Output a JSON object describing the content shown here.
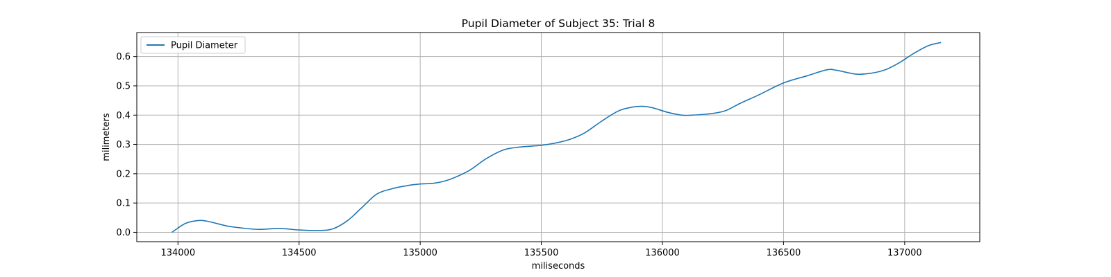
{
  "chart_data": {
    "type": "line",
    "title": "Pupil Diameter of Subject 35: Trial 8",
    "xlabel": "miliseconds",
    "ylabel": "milimeters",
    "xlim": [
      133830,
      137310
    ],
    "ylim": [
      -0.032,
      0.682
    ],
    "xticks": [
      134000,
      134500,
      135000,
      135500,
      136000,
      136500,
      137000
    ],
    "yticks": [
      0.0,
      0.1,
      0.2,
      0.3,
      0.4,
      0.5,
      0.6
    ],
    "xtick_labels": [
      "134000",
      "134500",
      "135000",
      "135500",
      "136000",
      "136500",
      "137000"
    ],
    "ytick_labels": [
      "0.0",
      "0.1",
      "0.2",
      "0.3",
      "0.4",
      "0.5",
      "0.6"
    ],
    "grid": true,
    "legend": {
      "position": "top-left"
    },
    "colors": {
      "series": "#1f77b4",
      "grid": "#b0b0b0"
    },
    "series": [
      {
        "name": "Pupil Diameter",
        "x": [
          133975,
          134030,
          134080,
          134120,
          134200,
          134250,
          134330,
          134420,
          134500,
          134580,
          134640,
          134700,
          134760,
          134820,
          134880,
          134950,
          135000,
          135060,
          135120,
          135200,
          135270,
          135340,
          135400,
          135500,
          135560,
          135620,
          135680,
          135750,
          135820,
          135880,
          135920,
          135960,
          136020,
          136080,
          136120,
          136200,
          136260,
          136320,
          136400,
          136500,
          136600,
          136680,
          136720,
          136800,
          136860,
          136920,
          136980,
          137040,
          137100,
          137150
        ],
        "y": [
          0.0,
          0.03,
          0.04,
          0.038,
          0.022,
          0.016,
          0.01,
          0.013,
          0.008,
          0.006,
          0.012,
          0.04,
          0.085,
          0.13,
          0.148,
          0.16,
          0.165,
          0.168,
          0.18,
          0.21,
          0.25,
          0.28,
          0.29,
          0.297,
          0.305,
          0.318,
          0.34,
          0.38,
          0.415,
          0.428,
          0.43,
          0.425,
          0.41,
          0.4,
          0.4,
          0.405,
          0.415,
          0.44,
          0.47,
          0.51,
          0.535,
          0.555,
          0.553,
          0.54,
          0.543,
          0.555,
          0.58,
          0.612,
          0.638,
          0.648
        ]
      }
    ]
  }
}
